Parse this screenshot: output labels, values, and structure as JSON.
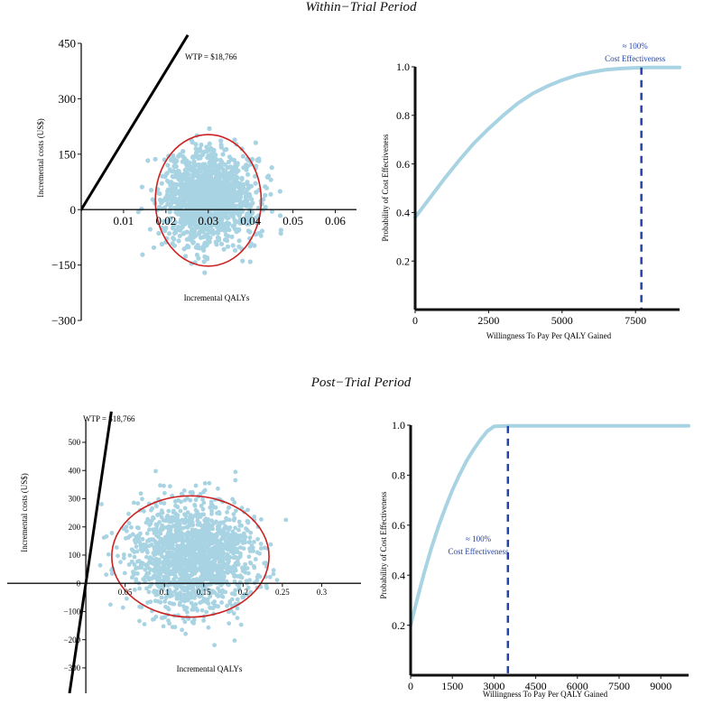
{
  "sections": {
    "top_title": "Within−Trial Period",
    "bottom_title": "Post−Trial Period"
  },
  "colors": {
    "scatter": "#a8d3e2",
    "ellipse": "#cc2222",
    "ceac": "#a8d3e2",
    "threshold": "#2244aa",
    "axis": "#111111"
  },
  "chart_data": [
    {
      "id": "within-trial-ce-plane",
      "type": "scatter",
      "title": "",
      "xlabel": "Incremental QALYs",
      "ylabel": "Incremental costs (US$)",
      "xlim": [
        0,
        0.065
      ],
      "ylim": [
        -300,
        450
      ],
      "xticks": [
        0.01,
        0.02,
        0.03,
        0.04,
        0.05,
        0.06
      ],
      "xtick_labels": [
        "0.01",
        "0.02",
        "0.03",
        "0.04",
        "0.05",
        "0.06"
      ],
      "yticks": [
        -300,
        -150,
        0,
        150,
        300,
        450
      ],
      "ytick_labels": [
        "−300",
        "−150",
        "0",
        "150",
        "300",
        "450"
      ],
      "cloud": {
        "mean_x": 0.03,
        "mean_y": 30,
        "sd_x": 0.0055,
        "sd_y": 62,
        "n": 1400
      },
      "ellipse": {
        "cx": 0.03,
        "cy": 25,
        "rx": 0.0125,
        "ry": 178
      },
      "wtp_line": {
        "label": "WTP = $18,766",
        "slope": 18766
      }
    },
    {
      "id": "within-trial-ceac",
      "type": "line",
      "title": "",
      "xlabel": "Willingness To Pay Per QALY Gained",
      "ylabel": "Probability of Cost Effectiveness",
      "xlim": [
        0,
        9000
      ],
      "ylim": [
        0,
        1.0
      ],
      "xticks": [
        0,
        2500,
        5000,
        7500
      ],
      "xtick_labels": [
        "0",
        "2500",
        "5000",
        "7500"
      ],
      "yticks": [
        0.2,
        0.4,
        0.6,
        0.8,
        1.0
      ],
      "ytick_labels": [
        "0.2",
        "0.4",
        "0.6",
        "0.8",
        "1.0"
      ],
      "series": [
        {
          "name": "CEAC",
          "x": [
            0,
            500,
            1000,
            1500,
            2000,
            2500,
            3000,
            3500,
            4000,
            4500,
            5000,
            5500,
            6000,
            6500,
            7000,
            7500,
            8000,
            8500,
            9000
          ],
          "y": [
            0.38,
            0.46,
            0.54,
            0.615,
            0.685,
            0.745,
            0.8,
            0.85,
            0.89,
            0.92,
            0.945,
            0.965,
            0.978,
            0.988,
            0.993,
            0.996,
            0.997,
            0.997,
            0.997
          ]
        }
      ],
      "threshold": {
        "x": 7700,
        "annotation_line1": "≈ 100%",
        "annotation_line2": "Cost Effectiveness"
      }
    },
    {
      "id": "post-trial-ce-plane",
      "type": "scatter",
      "title": "",
      "xlabel": "Incremental QALYs",
      "ylabel": "Incremental costs (US$)",
      "xlim": [
        -0.1,
        0.35
      ],
      "ylim": [
        -390,
        580
      ],
      "xticks": [
        0.05,
        0.1,
        0.15,
        0.2,
        0.25,
        0.3
      ],
      "xtick_labels": [
        "0.05",
        "0.1",
        "0.15",
        "0.2",
        "0.25",
        "0.3"
      ],
      "yticks": [
        -300,
        -200,
        -100,
        0,
        100,
        200,
        300,
        400,
        500
      ],
      "ytick_labels": [
        "−300",
        "−200",
        "−100",
        "0",
        "100",
        "200",
        "300",
        "400",
        "500"
      ],
      "cloud": {
        "mean_x": 0.135,
        "mean_y": 95,
        "sd_x": 0.038,
        "sd_y": 95,
        "n": 1600
      },
      "ellipse": {
        "cx": 0.133,
        "cy": 95,
        "rx": 0.1,
        "ry": 215
      },
      "wtp_line": {
        "label": "WTP = $18,766",
        "slope": 18766
      }
    },
    {
      "id": "post-trial-ceac",
      "type": "line",
      "title": "",
      "xlabel": "Willingness To Pay Per QALY Gained",
      "ylabel": "Probability of Cost Effectiveness",
      "xlim": [
        0,
        10000
      ],
      "ylim": [
        0,
        1.0
      ],
      "xticks": [
        0,
        1500,
        3000,
        4500,
        6000,
        7500,
        9000
      ],
      "xtick_labels": [
        "0",
        "1500",
        "3000",
        "4500",
        "6000",
        "7500",
        "9000"
      ],
      "yticks": [
        0.2,
        0.4,
        0.6,
        0.8,
        1.0
      ],
      "ytick_labels": [
        "0.2",
        "0.4",
        "0.6",
        "0.8",
        "1.0"
      ],
      "series": [
        {
          "name": "CEAC",
          "x": [
            0,
            250,
            500,
            750,
            1000,
            1250,
            1500,
            1750,
            2000,
            2250,
            2500,
            2750,
            3000,
            3500,
            4000,
            5000,
            6000,
            7000,
            8000,
            9000,
            10000
          ],
          "y": [
            0.2,
            0.31,
            0.415,
            0.51,
            0.595,
            0.67,
            0.74,
            0.8,
            0.855,
            0.9,
            0.94,
            0.975,
            0.995,
            0.997,
            0.997,
            0.997,
            0.997,
            0.997,
            0.997,
            0.997,
            0.997
          ]
        }
      ],
      "threshold": {
        "x": 3500,
        "annotation_line1": "≈ 100%",
        "annotation_line2": "Cost Effectiveness"
      }
    }
  ]
}
